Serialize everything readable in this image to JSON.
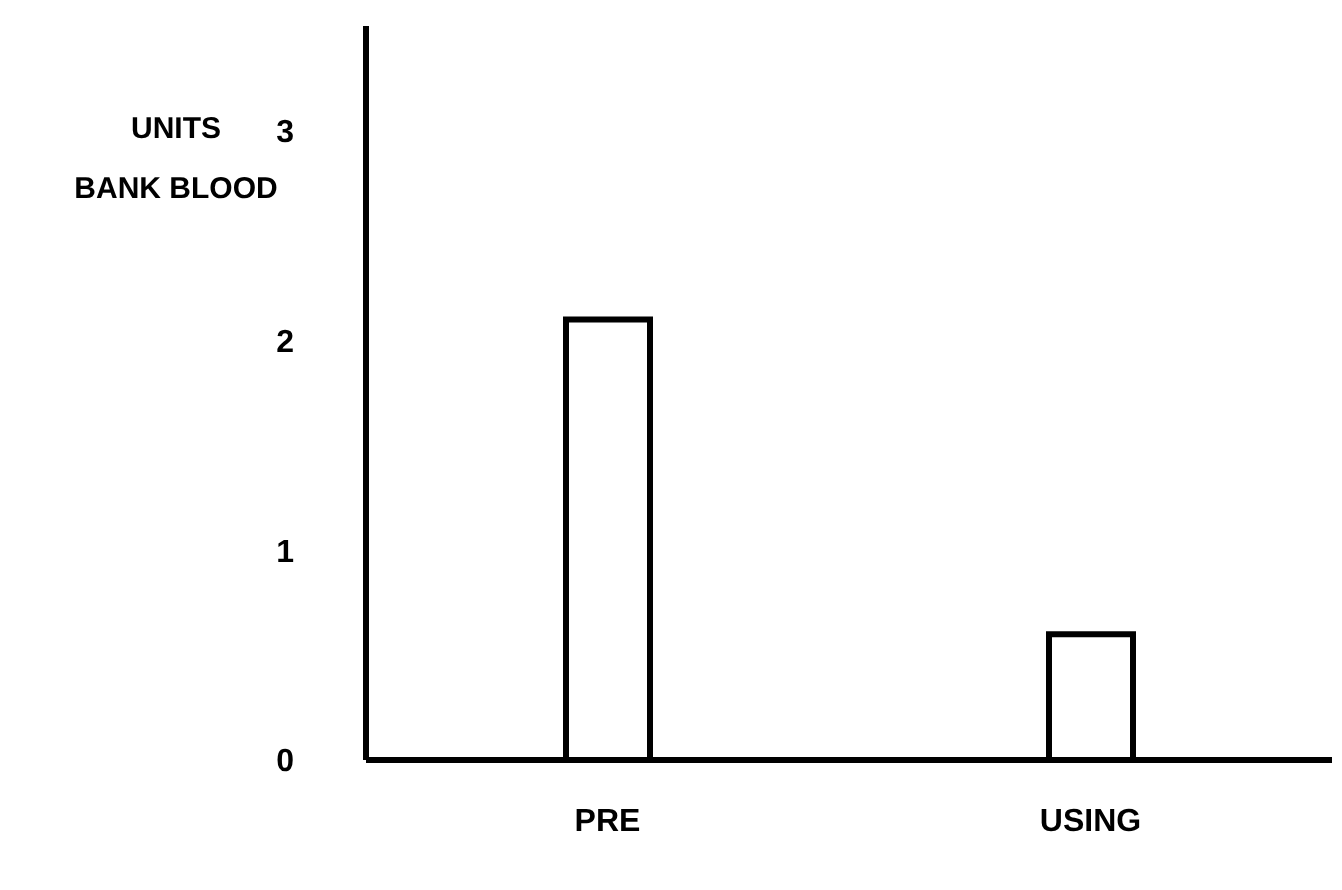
{
  "chart_data": {
    "type": "bar",
    "ylabel": "UNITS\nBANK BLOOD",
    "categories": [
      "PRE",
      "USING"
    ],
    "values": [
      2.1,
      0.6
    ],
    "color": "#ffffff",
    "ylim": [
      0,
      3.5
    ],
    "yticks": [
      0,
      1,
      2,
      3
    ],
    "grid": false,
    "legend": false
  }
}
